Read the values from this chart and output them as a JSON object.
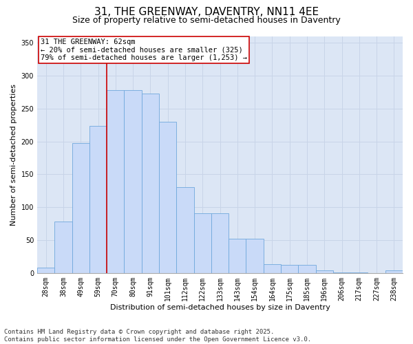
{
  "title_line1": "31, THE GREENWAY, DAVENTRY, NN11 4EE",
  "title_line2": "Size of property relative to semi-detached houses in Daventry",
  "xlabel": "Distribution of semi-detached houses by size in Daventry",
  "ylabel": "Number of semi-detached properties",
  "categories": [
    "28sqm",
    "38sqm",
    "49sqm",
    "59sqm",
    "70sqm",
    "80sqm",
    "91sqm",
    "101sqm",
    "112sqm",
    "122sqm",
    "133sqm",
    "143sqm",
    "154sqm",
    "164sqm",
    "175sqm",
    "185sqm",
    "196sqm",
    "206sqm",
    "217sqm",
    "227sqm",
    "238sqm"
  ],
  "values": [
    8,
    78,
    197,
    224,
    278,
    278,
    273,
    230,
    130,
    91,
    91,
    52,
    52,
    13,
    12,
    12,
    4,
    1,
    1,
    0,
    4
  ],
  "bar_color": "#c9daf8",
  "bar_edge_color": "#6fa8dc",
  "red_line_x": 3.5,
  "annotation_title": "31 THE GREENWAY: 62sqm",
  "annotation_line2": "← 20% of semi-detached houses are smaller (325)",
  "annotation_line3": "79% of semi-detached houses are larger (1,253) →",
  "annotation_box_color": "#ffffff",
  "annotation_box_edge": "#cc0000",
  "vline_color": "#cc0000",
  "ylim": [
    0,
    360
  ],
  "yticks": [
    0,
    50,
    100,
    150,
    200,
    250,
    300,
    350
  ],
  "grid_color": "#c8d4e8",
  "background_color": "#dce6f5",
  "footer_line1": "Contains HM Land Registry data © Crown copyright and database right 2025.",
  "footer_line2": "Contains public sector information licensed under the Open Government Licence v3.0.",
  "title_fontsize": 11,
  "subtitle_fontsize": 9,
  "axis_label_fontsize": 8,
  "tick_fontsize": 7,
  "annotation_fontsize": 7.5,
  "footer_fontsize": 6.5
}
